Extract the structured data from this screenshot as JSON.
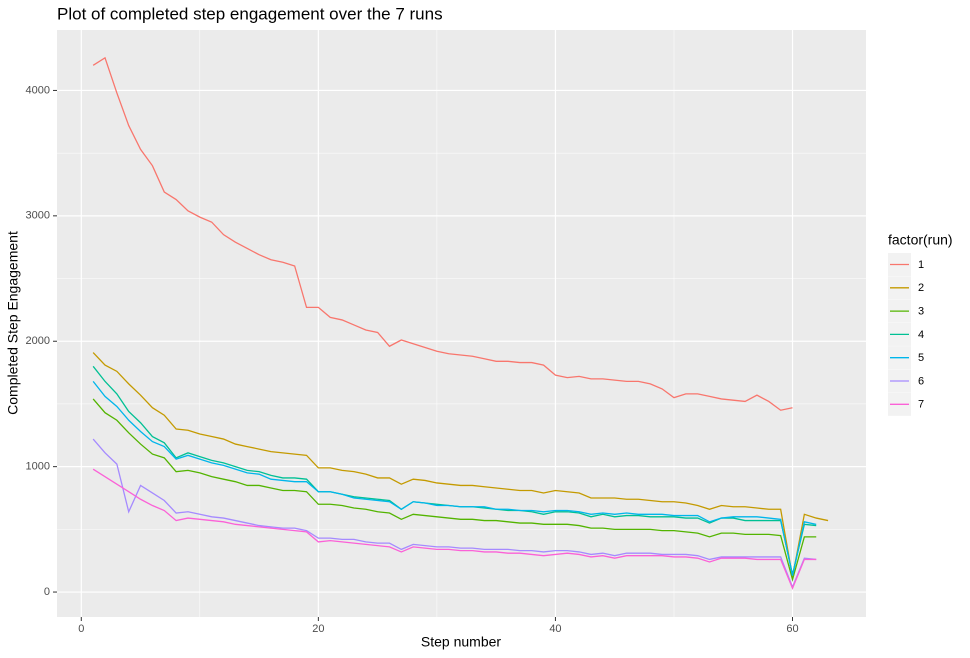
{
  "chart_data": {
    "type": "line",
    "title": "Plot of completed step engagement over the 7 runs",
    "x_label": "Step number",
    "y_label": "Completed Step Engagement",
    "legend_title": "factor(run)",
    "legend_position": "right",
    "grid": true,
    "xlim": [
      -2.05,
      66.2
    ],
    "ylim": [
      -199,
      4482
    ],
    "xticks": [
      0,
      20,
      40,
      60
    ],
    "yticks": [
      0,
      1000,
      2000,
      3000,
      4000
    ],
    "x": [
      1,
      2,
      3,
      4,
      5,
      6,
      7,
      8,
      9,
      10,
      11,
      12,
      13,
      14,
      15,
      16,
      17,
      18,
      19,
      20,
      21,
      22,
      23,
      24,
      25,
      26,
      27,
      28,
      29,
      30,
      31,
      32,
      33,
      34,
      35,
      36,
      37,
      38,
      39,
      40,
      41,
      42,
      43,
      44,
      45,
      46,
      47,
      48,
      49,
      50,
      51,
      52,
      53,
      54,
      55,
      56,
      57,
      58,
      59,
      60,
      61,
      62,
      63
    ],
    "series": [
      {
        "name": "1",
        "color": "#F8766D",
        "values": [
          4200,
          4260,
          3980,
          3720,
          3530,
          3400,
          3190,
          3130,
          3040,
          2990,
          2950,
          2850,
          2790,
          2740,
          2690,
          2650,
          2630,
          2600,
          2270,
          2270,
          2190,
          2170,
          2130,
          2090,
          2070,
          1960,
          2010,
          1980,
          1950,
          1920,
          1900,
          1890,
          1880,
          1860,
          1840,
          1840,
          1830,
          1830,
          1810,
          1730,
          1710,
          1720,
          1700,
          1700,
          1690,
          1680,
          1680,
          1660,
          1620,
          1550,
          1580,
          1580,
          1560,
          1540,
          1530,
          1520,
          1570,
          1520,
          1450,
          1470,
          null,
          null,
          null
        ]
      },
      {
        "name": "2",
        "color": "#C49A00",
        "values": [
          1910,
          1810,
          1760,
          1660,
          1570,
          1470,
          1410,
          1300,
          1290,
          1260,
          1240,
          1220,
          1180,
          1160,
          1140,
          1120,
          1110,
          1100,
          1090,
          990,
          990,
          970,
          960,
          940,
          910,
          910,
          860,
          900,
          890,
          870,
          860,
          850,
          850,
          840,
          830,
          820,
          810,
          810,
          790,
          810,
          800,
          790,
          750,
          750,
          750,
          740,
          740,
          730,
          720,
          720,
          710,
          690,
          660,
          690,
          680,
          680,
          670,
          660,
          660,
          120,
          620,
          590,
          570
        ]
      },
      {
        "name": "3",
        "color": "#53B400",
        "values": [
          1540,
          1430,
          1370,
          1270,
          1180,
          1100,
          1070,
          960,
          970,
          950,
          920,
          900,
          880,
          850,
          850,
          830,
          810,
          810,
          800,
          700,
          700,
          690,
          670,
          660,
          640,
          630,
          580,
          620,
          610,
          600,
          590,
          580,
          580,
          570,
          570,
          560,
          550,
          550,
          540,
          540,
          540,
          530,
          510,
          510,
          500,
          500,
          500,
          500,
          490,
          490,
          480,
          470,
          440,
          470,
          470,
          460,
          460,
          460,
          450,
          100,
          440,
          440,
          null
        ]
      },
      {
        "name": "4",
        "color": "#00C094",
        "values": [
          1800,
          1680,
          1580,
          1440,
          1350,
          1240,
          1190,
          1070,
          1110,
          1080,
          1050,
          1030,
          1000,
          970,
          960,
          930,
          910,
          910,
          900,
          800,
          800,
          780,
          760,
          750,
          740,
          730,
          660,
          720,
          710,
          700,
          690,
          680,
          680,
          670,
          660,
          650,
          650,
          640,
          620,
          640,
          640,
          630,
          600,
          620,
          600,
          610,
          610,
          600,
          600,
          600,
          590,
          590,
          550,
          590,
          590,
          570,
          570,
          570,
          570,
          140,
          540,
          530,
          null
        ]
      },
      {
        "name": "5",
        "color": "#00B6EB",
        "values": [
          1680,
          1560,
          1480,
          1370,
          1280,
          1200,
          1160,
          1060,
          1090,
          1060,
          1030,
          1010,
          980,
          950,
          940,
          900,
          890,
          880,
          880,
          800,
          800,
          780,
          750,
          740,
          730,
          720,
          660,
          720,
          710,
          690,
          690,
          680,
          680,
          680,
          660,
          660,
          650,
          650,
          640,
          650,
          650,
          640,
          620,
          630,
          620,
          630,
          620,
          620,
          620,
          610,
          610,
          610,
          560,
          590,
          600,
          600,
          600,
          590,
          580,
          130,
          560,
          540,
          null
        ]
      },
      {
        "name": "6",
        "color": "#A58AFF",
        "values": [
          1220,
          1110,
          1020,
          640,
          850,
          790,
          730,
          630,
          640,
          620,
          600,
          590,
          570,
          550,
          530,
          520,
          510,
          510,
          490,
          430,
          430,
          420,
          420,
          400,
          390,
          390,
          340,
          380,
          370,
          360,
          360,
          350,
          350,
          340,
          340,
          340,
          330,
          330,
          320,
          330,
          330,
          320,
          300,
          310,
          290,
          310,
          310,
          310,
          300,
          300,
          300,
          290,
          260,
          280,
          280,
          280,
          280,
          280,
          280,
          40,
          270,
          260,
          null
        ]
      },
      {
        "name": "7",
        "color": "#FB61D7",
        "values": [
          980,
          920,
          860,
          800,
          740,
          690,
          650,
          570,
          590,
          580,
          570,
          560,
          540,
          530,
          520,
          510,
          500,
          490,
          480,
          400,
          410,
          400,
          390,
          380,
          370,
          360,
          320,
          360,
          350,
          340,
          340,
          330,
          330,
          320,
          320,
          310,
          310,
          300,
          290,
          300,
          310,
          300,
          280,
          290,
          270,
          290,
          290,
          290,
          290,
          280,
          280,
          270,
          240,
          270,
          270,
          270,
          260,
          260,
          260,
          30,
          260,
          260,
          null
        ]
      }
    ]
  }
}
